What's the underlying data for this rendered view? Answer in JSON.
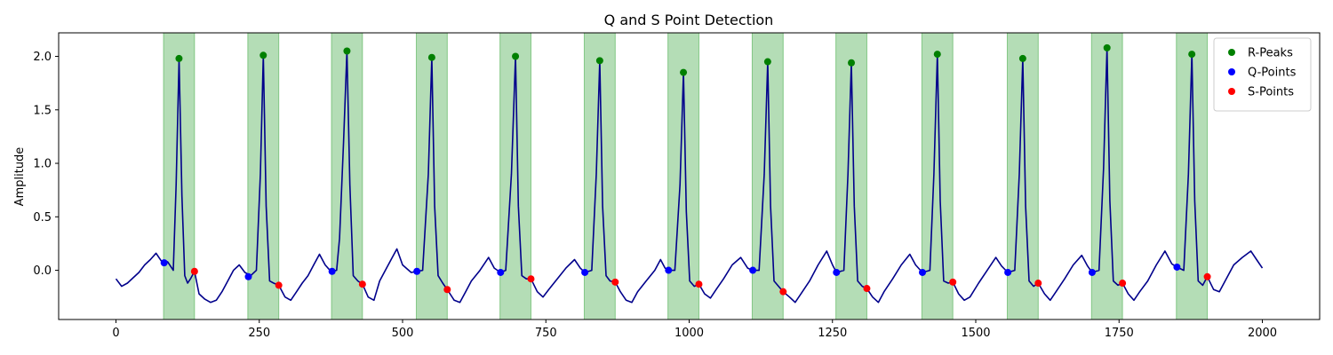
{
  "chart_data": {
    "type": "line",
    "title": "Q and S Point Detection",
    "xlabel": "",
    "ylabel": "Amplitude",
    "xlim": [
      -100,
      2100
    ],
    "ylim": [
      -0.46,
      2.22
    ],
    "xticks": [
      0,
      250,
      500,
      750,
      1000,
      1250,
      1500,
      1750,
      2000
    ],
    "yticks": [
      0.0,
      0.5,
      1.0,
      1.5,
      2.0
    ],
    "ytick_labels": [
      "0.0",
      "0.5",
      "1.0",
      "1.5",
      "2.0"
    ],
    "grid": false,
    "legend_position": "top-right",
    "colors": {
      "signal": "#00008b",
      "r_peaks": "#008000",
      "q_points": "#0000ff",
      "s_points": "#ff0000",
      "qrs_region": "#4caf50"
    },
    "legend": [
      {
        "label": "R-Peaks",
        "color": "#008000"
      },
      {
        "label": "Q-Points",
        "color": "#0000ff"
      },
      {
        "label": "S-Points",
        "color": "#ff0000"
      }
    ],
    "qrs_regions": [
      [
        83,
        137
      ],
      [
        230,
        284
      ],
      [
        376,
        430
      ],
      [
        524,
        578
      ],
      [
        670,
        724
      ],
      [
        817,
        871
      ],
      [
        963,
        1017
      ],
      [
        1110,
        1164
      ],
      [
        1256,
        1310
      ],
      [
        1406,
        1460
      ],
      [
        1555,
        1609
      ],
      [
        1702,
        1756
      ],
      [
        1850,
        1904
      ]
    ],
    "r_peaks": [
      {
        "x": 110,
        "y": 1.98
      },
      {
        "x": 257,
        "y": 2.01
      },
      {
        "x": 403,
        "y": 2.05
      },
      {
        "x": 551,
        "y": 1.99
      },
      {
        "x": 697,
        "y": 2.0
      },
      {
        "x": 844,
        "y": 1.96
      },
      {
        "x": 990,
        "y": 1.85
      },
      {
        "x": 1137,
        "y": 1.95
      },
      {
        "x": 1283,
        "y": 1.94
      },
      {
        "x": 1433,
        "y": 2.02
      },
      {
        "x": 1582,
        "y": 1.98
      },
      {
        "x": 1729,
        "y": 2.08
      },
      {
        "x": 1877,
        "y": 2.02
      }
    ],
    "q_points": [
      {
        "x": 84,
        "y": 0.07
      },
      {
        "x": 231,
        "y": -0.06
      },
      {
        "x": 377,
        "y": -0.01
      },
      {
        "x": 525,
        "y": -0.01
      },
      {
        "x": 671,
        "y": -0.02
      },
      {
        "x": 818,
        "y": -0.02
      },
      {
        "x": 964,
        "y": 0.0
      },
      {
        "x": 1111,
        "y": 0.0
      },
      {
        "x": 1257,
        "y": -0.02
      },
      {
        "x": 1407,
        "y": -0.02
      },
      {
        "x": 1556,
        "y": -0.02
      },
      {
        "x": 1703,
        "y": -0.02
      },
      {
        "x": 1851,
        "y": 0.03
      }
    ],
    "s_points": [
      {
        "x": 137,
        "y": -0.01
      },
      {
        "x": 284,
        "y": -0.14
      },
      {
        "x": 430,
        "y": -0.13
      },
      {
        "x": 578,
        "y": -0.18
      },
      {
        "x": 724,
        "y": -0.08
      },
      {
        "x": 871,
        "y": -0.11
      },
      {
        "x": 1017,
        "y": -0.13
      },
      {
        "x": 1164,
        "y": -0.2
      },
      {
        "x": 1310,
        "y": -0.17
      },
      {
        "x": 1460,
        "y": -0.11
      },
      {
        "x": 1609,
        "y": -0.12
      },
      {
        "x": 1756,
        "y": -0.12
      },
      {
        "x": 1904,
        "y": -0.06
      }
    ],
    "signal_samples": [
      [
        0,
        -0.08
      ],
      [
        10,
        -0.15
      ],
      [
        20,
        -0.12
      ],
      [
        30,
        -0.07
      ],
      [
        40,
        -0.02
      ],
      [
        50,
        0.05
      ],
      [
        60,
        0.1
      ],
      [
        70,
        0.16
      ],
      [
        80,
        0.08
      ],
      [
        90,
        0.08
      ],
      [
        100,
        0.0
      ],
      [
        105,
        0.8
      ],
      [
        110,
        1.98
      ],
      [
        115,
        0.7
      ],
      [
        120,
        -0.05
      ],
      [
        125,
        -0.12
      ],
      [
        130,
        -0.08
      ],
      [
        137,
        -0.01
      ],
      [
        145,
        -0.22
      ],
      [
        155,
        -0.27
      ],
      [
        165,
        -0.3
      ],
      [
        175,
        -0.28
      ],
      [
        185,
        -0.2
      ],
      [
        195,
        -0.1
      ],
      [
        205,
        0.0
      ],
      [
        215,
        0.05
      ],
      [
        225,
        -0.02
      ],
      [
        235,
        -0.05
      ],
      [
        245,
        0.0
      ],
      [
        252,
        0.9
      ],
      [
        257,
        2.01
      ],
      [
        262,
        0.6
      ],
      [
        268,
        -0.1
      ],
      [
        275,
        -0.12
      ],
      [
        284,
        -0.14
      ],
      [
        295,
        -0.25
      ],
      [
        305,
        -0.28
      ],
      [
        315,
        -0.2
      ],
      [
        325,
        -0.12
      ],
      [
        335,
        -0.05
      ],
      [
        345,
        0.05
      ],
      [
        355,
        0.15
      ],
      [
        365,
        0.05
      ],
      [
        375,
        -0.01
      ],
      [
        385,
        0.0
      ],
      [
        390,
        0.3
      ],
      [
        397,
        1.2
      ],
      [
        403,
        2.05
      ],
      [
        408,
        0.8
      ],
      [
        414,
        -0.05
      ],
      [
        422,
        -0.1
      ],
      [
        430,
        -0.13
      ],
      [
        440,
        -0.25
      ],
      [
        450,
        -0.28
      ],
      [
        460,
        -0.1
      ],
      [
        470,
        0.0
      ],
      [
        480,
        0.1
      ],
      [
        490,
        0.2
      ],
      [
        500,
        0.05
      ],
      [
        515,
        -0.02
      ],
      [
        525,
        -0.01
      ],
      [
        535,
        0.0
      ],
      [
        545,
        0.9
      ],
      [
        551,
        1.99
      ],
      [
        556,
        0.6
      ],
      [
        562,
        -0.05
      ],
      [
        570,
        -0.12
      ],
      [
        578,
        -0.18
      ],
      [
        590,
        -0.28
      ],
      [
        600,
        -0.3
      ],
      [
        610,
        -0.2
      ],
      [
        620,
        -0.1
      ],
      [
        635,
        0.0
      ],
      [
        650,
        0.12
      ],
      [
        660,
        0.02
      ],
      [
        671,
        -0.02
      ],
      [
        680,
        0.0
      ],
      [
        690,
        0.9
      ],
      [
        697,
        2.0
      ],
      [
        702,
        0.6
      ],
      [
        708,
        -0.05
      ],
      [
        716,
        -0.08
      ],
      [
        724,
        -0.08
      ],
      [
        735,
        -0.2
      ],
      [
        745,
        -0.25
      ],
      [
        755,
        -0.18
      ],
      [
        770,
        -0.08
      ],
      [
        785,
        0.02
      ],
      [
        800,
        0.1
      ],
      [
        810,
        0.02
      ],
      [
        818,
        -0.02
      ],
      [
        830,
        0.0
      ],
      [
        838,
        0.9
      ],
      [
        844,
        1.96
      ],
      [
        849,
        0.6
      ],
      [
        855,
        -0.05
      ],
      [
        862,
        -0.1
      ],
      [
        871,
        -0.11
      ],
      [
        880,
        -0.2
      ],
      [
        890,
        -0.28
      ],
      [
        900,
        -0.3
      ],
      [
        910,
        -0.2
      ],
      [
        925,
        -0.1
      ],
      [
        940,
        0.0
      ],
      [
        950,
        0.1
      ],
      [
        958,
        0.02
      ],
      [
        964,
        0.0
      ],
      [
        975,
        0.0
      ],
      [
        984,
        0.8
      ],
      [
        990,
        1.85
      ],
      [
        995,
        0.55
      ],
      [
        1001,
        -0.1
      ],
      [
        1009,
        -0.15
      ],
      [
        1017,
        -0.13
      ],
      [
        1027,
        -0.22
      ],
      [
        1037,
        -0.26
      ],
      [
        1047,
        -0.18
      ],
      [
        1060,
        -0.08
      ],
      [
        1075,
        0.05
      ],
      [
        1090,
        0.12
      ],
      [
        1102,
        0.02
      ],
      [
        1111,
        0.0
      ],
      [
        1122,
        0.0
      ],
      [
        1131,
        0.9
      ],
      [
        1137,
        1.95
      ],
      [
        1142,
        0.6
      ],
      [
        1148,
        -0.1
      ],
      [
        1156,
        -0.15
      ],
      [
        1164,
        -0.2
      ],
      [
        1175,
        -0.25
      ],
      [
        1185,
        -0.3
      ],
      [
        1195,
        -0.22
      ],
      [
        1210,
        -0.1
      ],
      [
        1225,
        0.05
      ],
      [
        1240,
        0.18
      ],
      [
        1250,
        0.05
      ],
      [
        1257,
        -0.02
      ],
      [
        1270,
        0.0
      ],
      [
        1277,
        0.9
      ],
      [
        1283,
        1.94
      ],
      [
        1288,
        0.6
      ],
      [
        1294,
        -0.1
      ],
      [
        1302,
        -0.15
      ],
      [
        1310,
        -0.17
      ],
      [
        1320,
        -0.25
      ],
      [
        1330,
        -0.3
      ],
      [
        1340,
        -0.2
      ],
      [
        1355,
        -0.08
      ],
      [
        1370,
        0.05
      ],
      [
        1385,
        0.15
      ],
      [
        1395,
        0.05
      ],
      [
        1407,
        -0.02
      ],
      [
        1420,
        0.0
      ],
      [
        1427,
        0.9
      ],
      [
        1433,
        2.02
      ],
      [
        1438,
        0.65
      ],
      [
        1444,
        -0.1
      ],
      [
        1452,
        -0.12
      ],
      [
        1460,
        -0.11
      ],
      [
        1470,
        -0.22
      ],
      [
        1480,
        -0.28
      ],
      [
        1490,
        -0.25
      ],
      [
        1505,
        -0.12
      ],
      [
        1520,
        0.0
      ],
      [
        1535,
        0.12
      ],
      [
        1545,
        0.04
      ],
      [
        1556,
        -0.02
      ],
      [
        1568,
        0.0
      ],
      [
        1576,
        0.9
      ],
      [
        1582,
        1.98
      ],
      [
        1587,
        0.6
      ],
      [
        1593,
        -0.1
      ],
      [
        1601,
        -0.15
      ],
      [
        1609,
        -0.12
      ],
      [
        1620,
        -0.22
      ],
      [
        1630,
        -0.28
      ],
      [
        1640,
        -0.2
      ],
      [
        1655,
        -0.08
      ],
      [
        1670,
        0.05
      ],
      [
        1685,
        0.14
      ],
      [
        1695,
        0.04
      ],
      [
        1703,
        -0.02
      ],
      [
        1715,
        0.0
      ],
      [
        1723,
        0.95
      ],
      [
        1729,
        2.08
      ],
      [
        1734,
        0.65
      ],
      [
        1740,
        -0.1
      ],
      [
        1748,
        -0.14
      ],
      [
        1756,
        -0.12
      ],
      [
        1766,
        -0.22
      ],
      [
        1776,
        -0.28
      ],
      [
        1786,
        -0.2
      ],
      [
        1800,
        -0.1
      ],
      [
        1815,
        0.05
      ],
      [
        1830,
        0.18
      ],
      [
        1842,
        0.06
      ],
      [
        1851,
        0.03
      ],
      [
        1863,
        0.0
      ],
      [
        1871,
        0.9
      ],
      [
        1877,
        2.02
      ],
      [
        1882,
        0.65
      ],
      [
        1888,
        -0.1
      ],
      [
        1896,
        -0.14
      ],
      [
        1904,
        -0.06
      ],
      [
        1915,
        -0.18
      ],
      [
        1925,
        -0.2
      ],
      [
        1935,
        -0.1
      ],
      [
        1950,
        0.05
      ],
      [
        1965,
        0.12
      ],
      [
        1980,
        0.18
      ],
      [
        1990,
        0.1
      ],
      [
        2000,
        0.02
      ]
    ]
  }
}
